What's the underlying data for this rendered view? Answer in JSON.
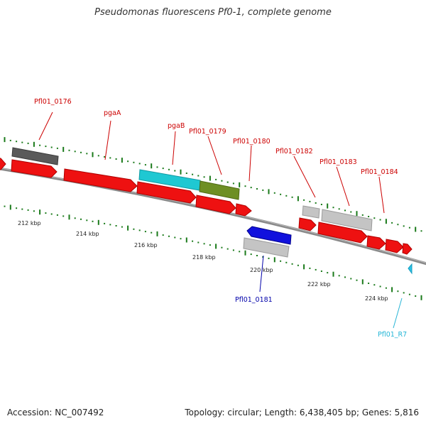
{
  "title": "Pseudomonas fluorescens Pf0-1, complete genome",
  "footer": {
    "accession": "Accession: NC_007492",
    "summary": "Topology: circular; Length: 6,438,405 bp; Genes: 5,816"
  },
  "colors": {
    "background": "#ffffff",
    "backbone": "#808080",
    "gene_red": "#ee1111",
    "gene_gray": "#c4c4c4",
    "gene_dark": "#5a5a5a",
    "gene_cyan": "#1fc8d2",
    "gene_olive": "#6e8f24",
    "gene_blue": "#1111dd",
    "label_red": "#cc0000",
    "label_blue": "#0000aa",
    "label_cyan": "#22b5d6",
    "tick_green": "#1a7a1a"
  },
  "scale": {
    "ticks": [
      "212 kbp",
      "214 kbp",
      "216 kbp",
      "218 kbp",
      "220 kbp",
      "222 kbp",
      "224 kbp"
    ]
  },
  "labels": {
    "pfl01_0176": "Pfl01_0176",
    "pgaA": "pgaA",
    "pgaB": "pgaB",
    "pfl01_0179": "Pfl01_0179",
    "pfl01_0180": "Pfl01_0180",
    "pfl01_0182": "Pfl01_0182",
    "pfl01_0183": "Pfl01_0183",
    "pfl01_0184": "Pfl01_0184",
    "pfl01_0181": "Pfl01_0181",
    "pfl01_r7": "Pfl01_R7"
  }
}
